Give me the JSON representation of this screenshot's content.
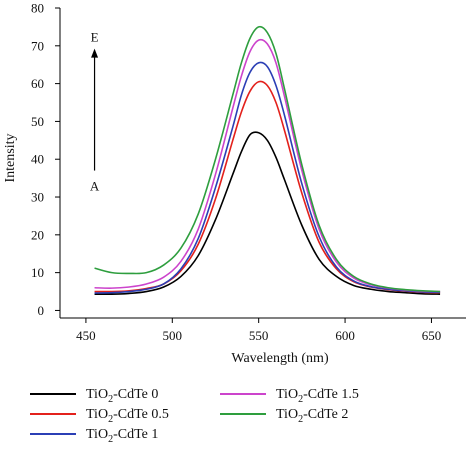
{
  "chart_data": {
    "type": "line",
    "title": "",
    "xlabel": "Wavelength (nm)",
    "ylabel": "Intensity",
    "xlim": [
      435,
      670
    ],
    "ylim": [
      -2,
      80
    ],
    "xticks": [
      450,
      500,
      550,
      600,
      650
    ],
    "yticks": [
      0,
      10,
      20,
      30,
      40,
      50,
      60,
      70,
      80
    ],
    "grid": false,
    "legend_position": "bottom",
    "annotation": {
      "top_label": "E",
      "bottom_label": "A",
      "arrow_x": 455,
      "arrow_from_y": 37,
      "arrow_to_y": 69
    },
    "x": [
      455,
      465,
      475,
      485,
      495,
      505,
      515,
      525,
      535,
      540,
      545,
      550,
      555,
      560,
      565,
      575,
      585,
      595,
      605,
      615,
      625,
      635,
      645,
      655
    ],
    "series": [
      {
        "name": "TiO2-CdTe 0",
        "name_base": "TiO",
        "name_sub": "2",
        "name_rest": "-CdTe 0",
        "color": "#000000",
        "values": [
          4.3,
          4.3,
          4.5,
          5.0,
          6.2,
          9.0,
          14.5,
          24.0,
          36.0,
          42.0,
          46.5,
          47.0,
          45.0,
          40.5,
          34.5,
          22.5,
          13.5,
          9.0,
          6.6,
          5.6,
          5.0,
          4.7,
          4.4,
          4.3
        ]
      },
      {
        "name": "TiO2-CdTe 0.5",
        "name_base": "TiO",
        "name_sub": "2",
        "name_rest": "-CdTe 0.5",
        "color": "#e3211c",
        "values": [
          5.0,
          5.0,
          5.2,
          5.8,
          7.0,
          10.5,
          17.5,
          29.5,
          45.0,
          52.5,
          58.0,
          60.5,
          59.5,
          55.0,
          47.5,
          31.0,
          18.0,
          11.0,
          7.6,
          6.2,
          5.5,
          5.1,
          4.8,
          4.7
        ]
      },
      {
        "name": "TiO2-CdTe 1",
        "name_base": "TiO",
        "name_sub": "2",
        "name_rest": "-CdTe 1",
        "color": "#2b3fb5",
        "values": [
          4.6,
          4.7,
          5.0,
          5.6,
          7.0,
          11.0,
          19.0,
          32.5,
          48.5,
          57.0,
          63.0,
          65.5,
          64.5,
          59.5,
          51.5,
          33.5,
          19.5,
          11.5,
          7.8,
          6.3,
          5.6,
          5.2,
          4.9,
          4.8
        ]
      },
      {
        "name": "TiO2-CdTe 1.5",
        "name_base": "TiO",
        "name_sub": "2",
        "name_rest": "-CdTe 1.5",
        "color": "#cc44cc",
        "values": [
          6.0,
          5.9,
          6.2,
          7.0,
          8.8,
          13.0,
          21.5,
          36.0,
          53.5,
          62.0,
          68.5,
          71.5,
          70.5,
          65.5,
          56.5,
          37.0,
          21.5,
          12.8,
          8.6,
          6.8,
          5.9,
          5.4,
          5.1,
          5.0
        ]
      },
      {
        "name": "TiO2-CdTe 2",
        "name_base": "TiO",
        "name_sub": "2",
        "name_rest": "-CdTe 2",
        "color": "#2e9e3e",
        "values": [
          11.2,
          10.0,
          9.8,
          10.0,
          12.0,
          16.5,
          25.5,
          40.0,
          57.0,
          65.5,
          72.0,
          75.0,
          73.5,
          68.0,
          58.5,
          38.5,
          22.5,
          13.5,
          9.0,
          7.0,
          6.0,
          5.5,
          5.2,
          5.0
        ]
      }
    ]
  }
}
